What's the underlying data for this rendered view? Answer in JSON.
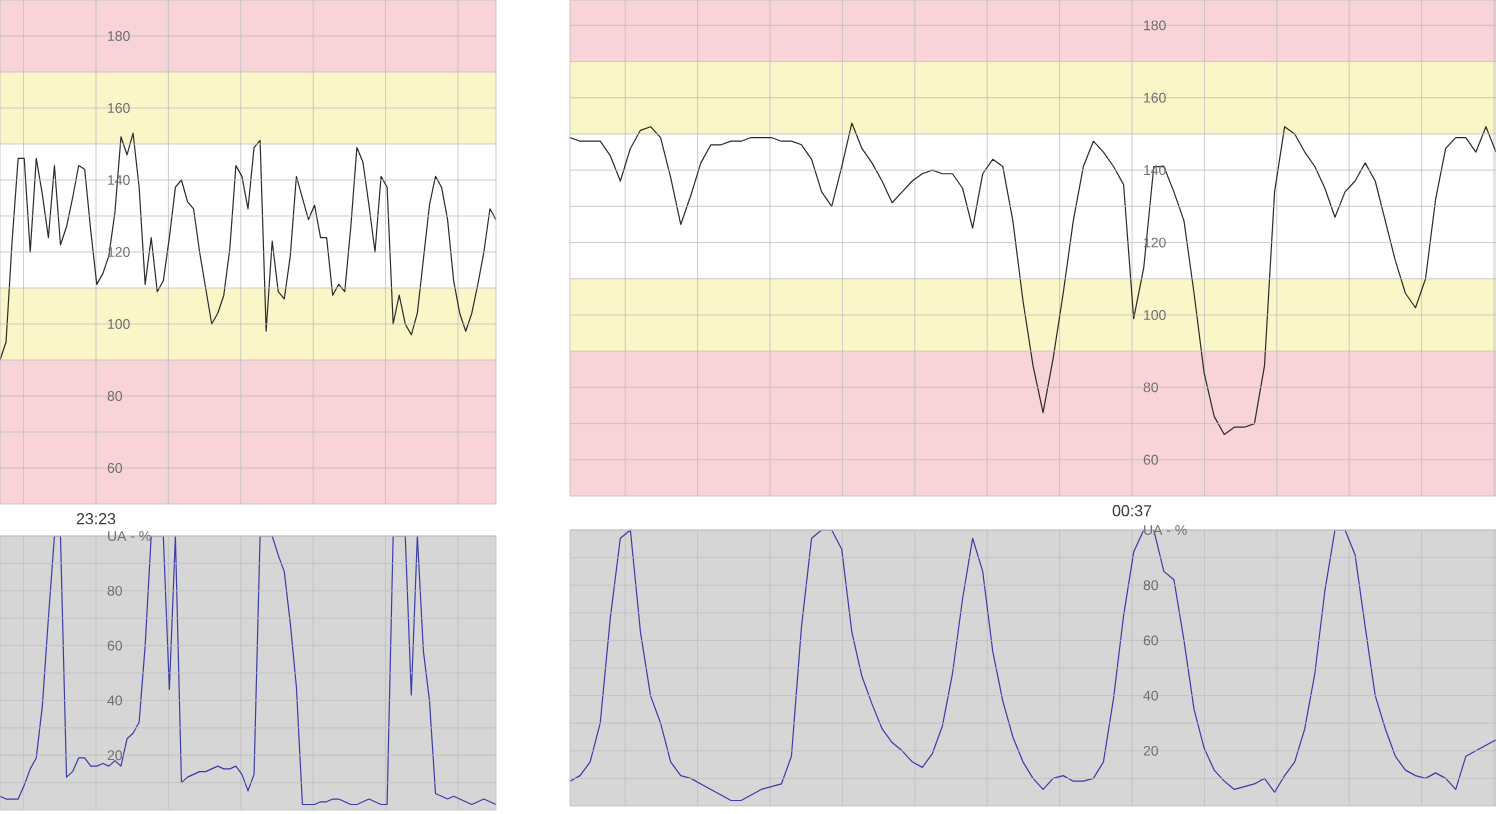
{
  "chart_data": [
    {
      "type": "line",
      "ylim": [
        50,
        190
      ],
      "grid": true,
      "tick_labels": "y",
      "annotations": [
        "23:23"
      ],
      "categories": [
        null,
        null,
        null,
        null,
        null,
        null,
        null,
        null,
        null,
        null,
        null,
        null,
        null,
        null,
        null,
        null,
        null,
        null,
        null,
        null,
        null,
        null,
        null,
        null,
        null,
        null,
        null,
        null,
        null,
        null,
        null,
        null,
        null,
        null,
        null,
        null,
        null,
        null,
        null,
        null,
        null,
        null,
        null,
        null,
        null,
        null,
        null,
        null,
        null,
        null,
        null,
        null,
        null,
        null,
        null,
        null,
        null,
        null,
        null,
        null,
        null,
        null,
        null,
        null,
        null,
        null,
        null,
        null,
        null,
        null,
        null,
        null,
        null,
        null,
        null,
        null,
        null,
        null,
        null,
        null,
        null,
        null,
        null
      ],
      "yticks": [
        60,
        {
          "value": 70,
          "label": null
        },
        80,
        {
          "value": 90,
          "label": null
        },
        100,
        {
          "value": 110,
          "label": null
        },
        120,
        {
          "value": 130,
          "label": null
        },
        140,
        {
          "value": 150,
          "label": null
        },
        160,
        {
          "value": 170,
          "label": null
        },
        180
      ],
      "bands": [
        {
          "axis": "y",
          "from": 170,
          "to": 190,
          "color": "#f8d3d8"
        },
        {
          "axis": "y",
          "from": 150,
          "to": 170,
          "color": "#fbf6c8"
        },
        {
          "axis": "y",
          "from": 90,
          "to": 110,
          "color": "#fbf6c8"
        },
        {
          "axis": "y",
          "from": 50,
          "to": 90,
          "color": "#f8d3d8"
        }
      ],
      "series": [
        {
          "color": "#2b2b2b",
          "values": [
            90,
            95,
            123,
            146,
            146,
            120,
            146,
            136,
            124,
            144,
            122,
            127,
            135,
            144,
            143,
            126,
            111,
            114,
            119,
            131,
            152,
            147,
            153,
            138,
            111,
            124,
            109,
            112,
            124,
            138,
            140,
            134,
            132,
            120,
            110,
            100,
            103,
            108,
            121,
            144,
            141,
            132,
            149,
            151,
            98,
            123,
            109,
            107,
            119,
            141,
            135,
            129,
            133,
            124,
            124,
            108,
            111,
            109,
            127,
            149,
            145,
            133,
            120,
            141,
            138,
            100,
            108,
            100,
            97,
            103,
            118,
            133,
            141,
            138,
            129,
            112,
            103,
            98,
            103,
            111,
            120,
            132,
            129
          ]
        }
      ]
    },
    {
      "type": "line",
      "ylim": [
        50,
        187
      ],
      "grid": true,
      "tick_labels": "y",
      "annotations": [
        "00:37"
      ],
      "categories": [
        null,
        null,
        null,
        null,
        null,
        null,
        null,
        null,
        null,
        null,
        null,
        null,
        null,
        null,
        null,
        null,
        null,
        null,
        null,
        null,
        null,
        null,
        null,
        null,
        null,
        null,
        null,
        null,
        null,
        null,
        null,
        null,
        null,
        null,
        null,
        null,
        null,
        null,
        null,
        null,
        null,
        null,
        null,
        null,
        null,
        null,
        null,
        null,
        null,
        null,
        null,
        null,
        null,
        null,
        null,
        null,
        null,
        null,
        null,
        null,
        null,
        null,
        null,
        null,
        null,
        null,
        null,
        null,
        null,
        null,
        null,
        null,
        null,
        null,
        null,
        null,
        null,
        null,
        null,
        null,
        null,
        null,
        null,
        null,
        null,
        null,
        null,
        null,
        null,
        null,
        null,
        null,
        null
      ],
      "yticks": [
        60,
        {
          "value": 70,
          "label": null
        },
        80,
        {
          "value": 90,
          "label": null
        },
        100,
        {
          "value": 110,
          "label": null
        },
        120,
        {
          "value": 130,
          "label": null
        },
        140,
        {
          "value": 150,
          "label": null
        },
        160,
        {
          "value": 170,
          "label": null
        },
        180
      ],
      "bands": [
        {
          "axis": "y",
          "from": 170,
          "to": 187,
          "color": "#f8d3d8"
        },
        {
          "axis": "y",
          "from": 150,
          "to": 170,
          "color": "#fbf6c8"
        },
        {
          "axis": "y",
          "from": 90,
          "to": 110,
          "color": "#fbf6c8"
        },
        {
          "axis": "y",
          "from": 50,
          "to": 90,
          "color": "#f8d3d8"
        }
      ],
      "series": [
        {
          "color": "#2b2b2b",
          "values": [
            149,
            148,
            148,
            148,
            144,
            137,
            146,
            151,
            152,
            149,
            138,
            125,
            133,
            142,
            147,
            147,
            148,
            148,
            149,
            149,
            149,
            148,
            148,
            147,
            143,
            134,
            130,
            141,
            153,
            146,
            142,
            137,
            131,
            134,
            137,
            139,
            140,
            139,
            139,
            135,
            124,
            139,
            143,
            141,
            126,
            104,
            86,
            73,
            88,
            106,
            126,
            141,
            148,
            145,
            141,
            136,
            99,
            113,
            141,
            141,
            134,
            126,
            106,
            84,
            72,
            67,
            69,
            69,
            70,
            86,
            134,
            152,
            150,
            145,
            141,
            135,
            127,
            134,
            137,
            142,
            137,
            126,
            115,
            106,
            102,
            110,
            132,
            146,
            149,
            149,
            145,
            152,
            145
          ]
        }
      ]
    },
    {
      "type": "line",
      "ylim": [
        0,
        100
      ],
      "grid": true,
      "tick_labels": "y",
      "categories": [
        null,
        null,
        null,
        null,
        null,
        null,
        null,
        null,
        null,
        null,
        null,
        null,
        null,
        null,
        null,
        null,
        null,
        null,
        null,
        null,
        null,
        null,
        null,
        null,
        null,
        null,
        null,
        null,
        null,
        null,
        null,
        null,
        null,
        null,
        null,
        null,
        null,
        null,
        null,
        null,
        null,
        null,
        null,
        null,
        null,
        null,
        null,
        null,
        null,
        null,
        null,
        null,
        null,
        null,
        null,
        null,
        null,
        null,
        null,
        null,
        null,
        null,
        null,
        null,
        null,
        null,
        null,
        null,
        null,
        null,
        null,
        null,
        null,
        null,
        null,
        null,
        null,
        null,
        null,
        null,
        null,
        null,
        null
      ],
      "yticks": [
        {
          "value": 10,
          "label": null
        },
        20,
        {
          "value": 30,
          "label": null
        },
        40,
        {
          "value": 50,
          "label": null
        },
        60,
        {
          "value": 70,
          "label": null
        },
        80,
        {
          "value": 90,
          "label": null
        },
        {
          "value": 100,
          "label": "UA - %"
        }
      ],
      "series": [
        {
          "color": "#3c3ca8",
          "values": [
            5,
            4,
            4,
            4,
            9,
            15,
            19,
            38,
            70,
            100,
            100,
            12,
            14,
            19,
            19,
            16,
            16,
            17,
            16,
            18,
            16,
            26,
            28,
            32,
            60,
            100,
            100,
            100,
            44,
            100,
            10,
            12,
            13,
            14,
            14,
            15,
            16,
            15,
            15,
            16,
            13,
            7,
            13,
            100,
            100,
            100,
            93,
            87,
            68,
            45,
            2,
            2,
            2,
            3,
            3,
            4,
            4,
            3,
            2,
            2,
            3,
            4,
            3,
            2,
            2,
            100,
            100,
            100,
            42,
            100,
            58,
            40,
            6,
            5,
            4,
            5,
            4,
            3,
            2,
            3,
            4,
            3,
            2
          ]
        }
      ]
    },
    {
      "type": "line",
      "ylim": [
        0,
        100
      ],
      "grid": true,
      "tick_labels": "y",
      "categories": [
        null,
        null,
        null,
        null,
        null,
        null,
        null,
        null,
        null,
        null,
        null,
        null,
        null,
        null,
        null,
        null,
        null,
        null,
        null,
        null,
        null,
        null,
        null,
        null,
        null,
        null,
        null,
        null,
        null,
        null,
        null,
        null,
        null,
        null,
        null,
        null,
        null,
        null,
        null,
        null,
        null,
        null,
        null,
        null,
        null,
        null,
        null,
        null,
        null,
        null,
        null,
        null,
        null,
        null,
        null,
        null,
        null,
        null,
        null,
        null,
        null,
        null,
        null,
        null,
        null,
        null,
        null,
        null,
        null,
        null,
        null,
        null,
        null,
        null,
        null,
        null,
        null,
        null,
        null,
        null,
        null,
        null,
        null,
        null,
        null,
        null,
        null,
        null,
        null,
        null,
        null,
        null,
        null
      ],
      "yticks": [
        {
          "value": 10,
          "label": null
        },
        20,
        {
          "value": 30,
          "label": null
        },
        40,
        {
          "value": 50,
          "label": null
        },
        60,
        {
          "value": 70,
          "label": null
        },
        80,
        {
          "value": 90,
          "label": null
        },
        {
          "value": 100,
          "label": "UA - %"
        }
      ],
      "series": [
        {
          "color": "#3c3ca8",
          "values": [
            9,
            11,
            16,
            30,
            68,
            97,
            100,
            63,
            40,
            30,
            16,
            11,
            10,
            8,
            6,
            4,
            2,
            2,
            4,
            6,
            7,
            8,
            18,
            65,
            97,
            100,
            100,
            93,
            63,
            47,
            37,
            28,
            23,
            20,
            16,
            14,
            19,
            29,
            48,
            75,
            97,
            85,
            56,
            38,
            25,
            16,
            10,
            6,
            10,
            11,
            9,
            9,
            10,
            16,
            39,
            69,
            92,
            100,
            100,
            85,
            82,
            60,
            35,
            21,
            13,
            9,
            6,
            7,
            8,
            10,
            5,
            11,
            16,
            28,
            48,
            78,
            100,
            100,
            91,
            65,
            40,
            28,
            18,
            13,
            11,
            10,
            12,
            10,
            6,
            18,
            20,
            22,
            24
          ]
        }
      ]
    }
  ]
}
